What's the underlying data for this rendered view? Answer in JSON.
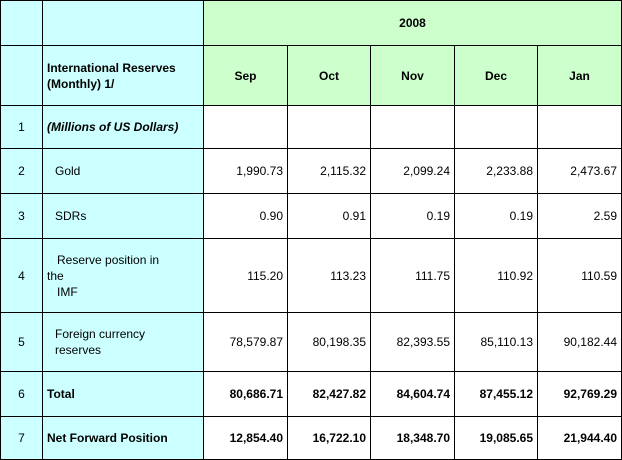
{
  "year": "2008",
  "header_label": "International Reserves (Monthly) 1/",
  "months": [
    "Sep",
    "Oct",
    "Nov",
    "Dec",
    "Jan"
  ],
  "rows": [
    {
      "num": "1",
      "label": "(Millions of US Dollars)",
      "values": [
        "",
        "",
        "",
        "",
        ""
      ]
    },
    {
      "num": "2",
      "label": "Gold",
      "values": [
        "1,990.73",
        "2,115.32",
        "2,099.24",
        "2,233.88",
        "2,473.67"
      ]
    },
    {
      "num": "3",
      "label": "SDRs",
      "values": [
        "0.90",
        "0.91",
        "0.19",
        "0.19",
        "2.59"
      ]
    },
    {
      "num": "4",
      "label_lines": [
        "Reserve position in",
        "the",
        "IMF"
      ],
      "values": [
        "115.20",
        "113.23",
        "111.75",
        "110.92",
        "110.59"
      ]
    },
    {
      "num": "5",
      "label_lines": [
        "Foreign currency",
        "reserves"
      ],
      "values": [
        "78,579.87",
        "80,198.35",
        "82,393.55",
        "85,110.13",
        "90,182.44"
      ]
    },
    {
      "num": "6",
      "label": "Total",
      "values": [
        "80,686.71",
        "82,427.82",
        "84,604.74",
        "87,455.12",
        "92,769.29"
      ]
    },
    {
      "num": "7",
      "label": "Net Forward Position",
      "values": [
        "12,854.40",
        "16,722.10",
        "18,348.70",
        "19,085.65",
        "21,944.40"
      ]
    }
  ]
}
